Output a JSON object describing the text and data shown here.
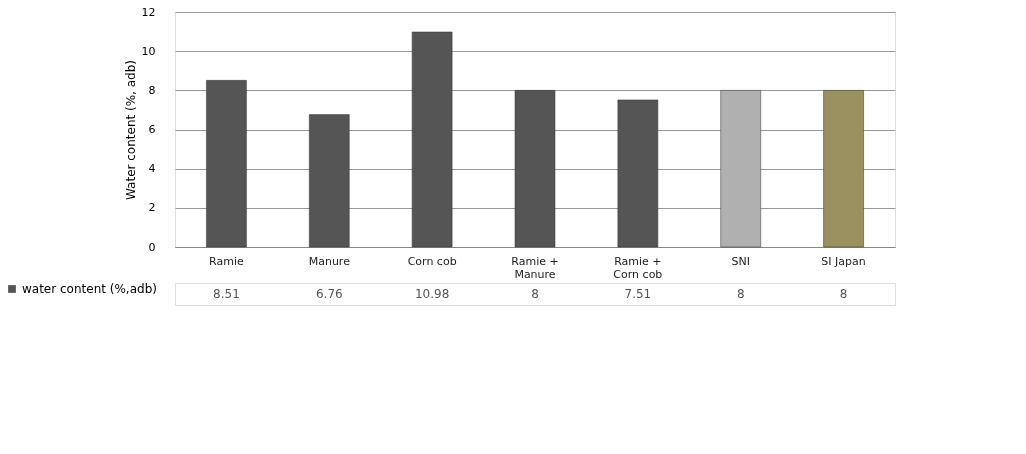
{
  "chart_data": {
    "type": "bar",
    "ylabel": "Water content (%, adb)",
    "categories": [
      "Ramie",
      "Manure",
      "Corn cob",
      "Ramie + Manure",
      "Ramie + Corn cob",
      "SNI",
      "SI Japan"
    ],
    "series": [
      {
        "name": "water content (%,adb)",
        "color": "#555555",
        "colors": [
          "#555555",
          "#555555",
          "#555555",
          "#555555",
          "#555555",
          "#b0b0b0",
          "#9a9060"
        ],
        "values": [
          8.51,
          6.76,
          10.98,
          8,
          7.51,
          8,
          8
        ]
      }
    ],
    "ylim": [
      0,
      12
    ],
    "yticks": [
      0,
      2,
      4,
      6,
      8,
      10,
      12
    ],
    "grid": "y",
    "data_labels": true,
    "legend": "bottom"
  }
}
